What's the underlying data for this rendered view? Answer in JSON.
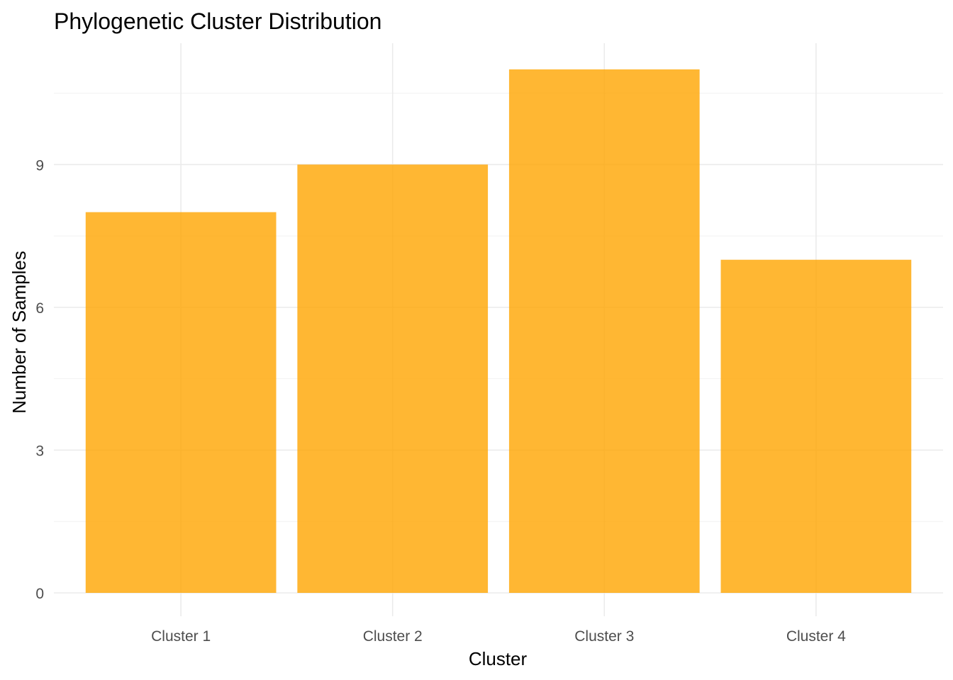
{
  "chart_data": {
    "type": "bar",
    "title": "Phylogenetic Cluster Distribution",
    "xlabel": "Cluster",
    "ylabel": "Number of Samples",
    "categories": [
      "Cluster 1",
      "Cluster 2",
      "Cluster 3",
      "Cluster 4"
    ],
    "values": [
      8,
      9,
      11,
      7
    ],
    "ylim": [
      0,
      11.55
    ],
    "yticks": [
      0,
      3,
      6,
      9
    ],
    "yticks_minor": [
      1.5,
      4.5,
      7.5,
      10.5
    ],
    "bar_color": "#FFA500",
    "bar_opacity": 0.8,
    "grid": true,
    "legend": "none"
  }
}
